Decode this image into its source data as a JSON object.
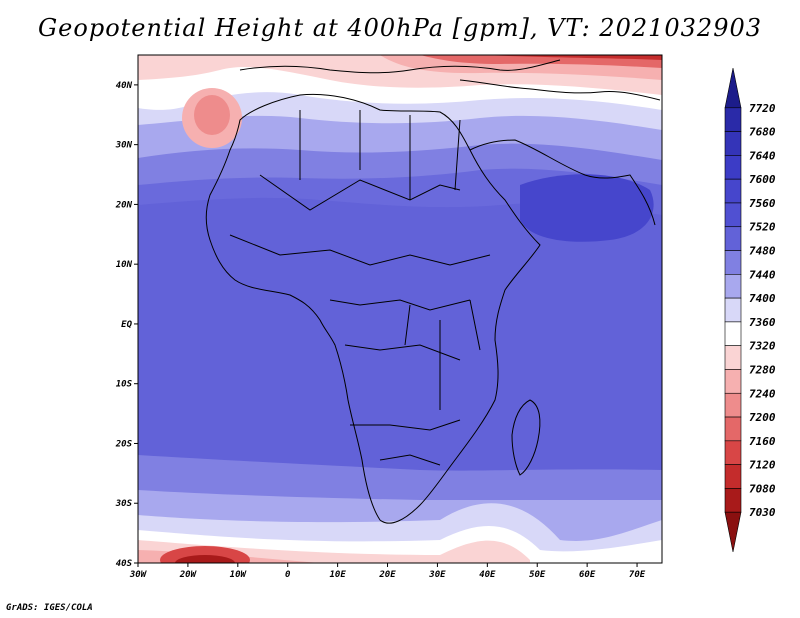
{
  "title": "Geopotential Height at 400hPa [gpm], VT: 2021032903",
  "credit": "GrADS: IGES/COLA",
  "map": {
    "lon_range": [
      -30,
      75
    ],
    "lat_range": [
      -40,
      45
    ],
    "x_ticks": [
      {
        "lon": -30,
        "label": "30W"
      },
      {
        "lon": -20,
        "label": "20W"
      },
      {
        "lon": -10,
        "label": "10W"
      },
      {
        "lon": 0,
        "label": "0"
      },
      {
        "lon": 10,
        "label": "10E"
      },
      {
        "lon": 20,
        "label": "20E"
      },
      {
        "lon": 30,
        "label": "30E"
      },
      {
        "lon": 40,
        "label": "40E"
      },
      {
        "lon": 50,
        "label": "50E"
      },
      {
        "lon": 60,
        "label": "60E"
      },
      {
        "lon": 70,
        "label": "70E"
      }
    ],
    "y_ticks": [
      {
        "lat": 40,
        "label": "40N"
      },
      {
        "lat": 30,
        "label": "30N"
      },
      {
        "lat": 20,
        "label": "20N"
      },
      {
        "lat": 10,
        "label": "10N"
      },
      {
        "lat": 0,
        "label": "EQ"
      },
      {
        "lat": -10,
        "label": "10S"
      },
      {
        "lat": -20,
        "label": "20S"
      },
      {
        "lat": -30,
        "label": "30S"
      },
      {
        "lat": -40,
        "label": "40S"
      }
    ]
  },
  "colorbar": {
    "levels": [
      "7720",
      "7680",
      "7640",
      "7600",
      "7560",
      "7520",
      "7480",
      "7440",
      "7400",
      "7360",
      "7320",
      "7280",
      "7240",
      "7200",
      "7160",
      "7120",
      "7080",
      "7030"
    ],
    "colors": [
      "#1c1c8a",
      "#2a2aa8",
      "#3434b8",
      "#3c3cc6",
      "#4646cc",
      "#5050d2",
      "#6262d8",
      "#8080e2",
      "#a8a8ee",
      "#d8d8f8",
      "#ffffff",
      "#fad4d4",
      "#f6b0b0",
      "#ee8c8c",
      "#e46868",
      "#d84646",
      "#c42c2c",
      "#a81a1a",
      "#8a1010"
    ]
  }
}
